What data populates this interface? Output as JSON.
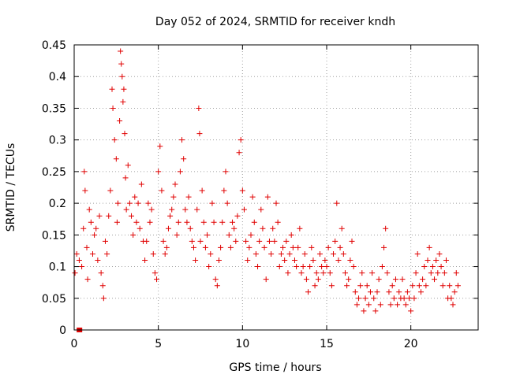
{
  "chart_data": {
    "type": "scatter",
    "title": "Day 052 of 2024, SRMTID for receiver kndh",
    "xlabel": "GPS time / hours",
    "ylabel": "SRMTID / TECUs",
    "xlim": [
      0,
      24
    ],
    "ylim": [
      0,
      0.45
    ],
    "xticks": [
      0,
      5,
      10,
      15,
      20
    ],
    "yticks": [
      0,
      0.05,
      0.1,
      0.15,
      0.2,
      0.25,
      0.3,
      0.35,
      0.4,
      0.45
    ],
    "xtick_labels": [
      "0",
      "5",
      "10",
      "15",
      "20"
    ],
    "ytick_labels": [
      "0",
      "0.05",
      "0.1",
      "0.15",
      "0.2",
      "0.25",
      "0.3",
      "0.35",
      "0.4",
      "0.45"
    ],
    "grid": true,
    "marker": "+",
    "color": "#e00000",
    "series": [
      {
        "name": "SRMTID",
        "points": [
          [
            0.05,
            0.09
          ],
          [
            0.15,
            0.12
          ],
          [
            0.3,
            0.11
          ],
          [
            0.45,
            0.1
          ],
          [
            0.55,
            0.16
          ],
          [
            0.6,
            0.25
          ],
          [
            0.65,
            0.22
          ],
          [
            0.75,
            0.13
          ],
          [
            0.8,
            0.08
          ],
          [
            0.9,
            0.19
          ],
          [
            1.0,
            0.17
          ],
          [
            1.1,
            0.12
          ],
          [
            1.2,
            0.15
          ],
          [
            1.3,
            0.16
          ],
          [
            1.4,
            0.11
          ],
          [
            1.5,
            0.18
          ],
          [
            1.6,
            0.09
          ],
          [
            1.7,
            0.07
          ],
          [
            1.75,
            0.05
          ],
          [
            1.85,
            0.14
          ],
          [
            1.95,
            0.12
          ],
          [
            2.05,
            0.18
          ],
          [
            2.15,
            0.22
          ],
          [
            2.25,
            0.38
          ],
          [
            2.3,
            0.35
          ],
          [
            2.4,
            0.3
          ],
          [
            2.5,
            0.27
          ],
          [
            2.55,
            0.17
          ],
          [
            2.6,
            0.2
          ],
          [
            2.7,
            0.33
          ],
          [
            2.75,
            0.44
          ],
          [
            2.8,
            0.42
          ],
          [
            2.85,
            0.4
          ],
          [
            2.9,
            0.36
          ],
          [
            2.95,
            0.38
          ],
          [
            3.0,
            0.31
          ],
          [
            3.05,
            0.24
          ],
          [
            3.1,
            0.19
          ],
          [
            3.2,
            0.26
          ],
          [
            3.3,
            0.2
          ],
          [
            3.4,
            0.18
          ],
          [
            3.5,
            0.15
          ],
          [
            3.6,
            0.21
          ],
          [
            3.7,
            0.17
          ],
          [
            3.8,
            0.2
          ],
          [
            3.9,
            0.16
          ],
          [
            4.0,
            0.23
          ],
          [
            4.1,
            0.14
          ],
          [
            4.2,
            0.11
          ],
          [
            4.3,
            0.14
          ],
          [
            4.4,
            0.2
          ],
          [
            4.5,
            0.17
          ],
          [
            4.6,
            0.19
          ],
          [
            4.7,
            0.12
          ],
          [
            4.8,
            0.09
          ],
          [
            4.9,
            0.08
          ],
          [
            5.0,
            0.25
          ],
          [
            5.1,
            0.29
          ],
          [
            5.2,
            0.22
          ],
          [
            5.3,
            0.14
          ],
          [
            5.4,
            0.12
          ],
          [
            5.5,
            0.13
          ],
          [
            5.6,
            0.16
          ],
          [
            5.7,
            0.18
          ],
          [
            5.8,
            0.19
          ],
          [
            5.9,
            0.21
          ],
          [
            6.0,
            0.23
          ],
          [
            6.1,
            0.15
          ],
          [
            6.2,
            0.17
          ],
          [
            6.3,
            0.25
          ],
          [
            6.4,
            0.3
          ],
          [
            6.5,
            0.27
          ],
          [
            6.6,
            0.19
          ],
          [
            6.7,
            0.17
          ],
          [
            6.8,
            0.21
          ],
          [
            6.9,
            0.16
          ],
          [
            7.0,
            0.14
          ],
          [
            7.1,
            0.13
          ],
          [
            7.2,
            0.11
          ],
          [
            7.3,
            0.19
          ],
          [
            7.4,
            0.35
          ],
          [
            7.45,
            0.31
          ],
          [
            7.5,
            0.14
          ],
          [
            7.6,
            0.22
          ],
          [
            7.7,
            0.17
          ],
          [
            7.8,
            0.13
          ],
          [
            7.9,
            0.15
          ],
          [
            8.0,
            0.1
          ],
          [
            8.1,
            0.12
          ],
          [
            8.2,
            0.2
          ],
          [
            8.3,
            0.17
          ],
          [
            8.4,
            0.08
          ],
          [
            8.5,
            0.07
          ],
          [
            8.6,
            0.11
          ],
          [
            8.7,
            0.13
          ],
          [
            8.8,
            0.17
          ],
          [
            8.9,
            0.22
          ],
          [
            9.0,
            0.25
          ],
          [
            9.1,
            0.2
          ],
          [
            9.2,
            0.15
          ],
          [
            9.3,
            0.13
          ],
          [
            9.4,
            0.17
          ],
          [
            9.5,
            0.16
          ],
          [
            9.6,
            0.14
          ],
          [
            9.7,
            0.18
          ],
          [
            9.8,
            0.28
          ],
          [
            9.9,
            0.3
          ],
          [
            10.0,
            0.22
          ],
          [
            10.1,
            0.19
          ],
          [
            10.2,
            0.14
          ],
          [
            10.3,
            0.11
          ],
          [
            10.4,
            0.13
          ],
          [
            10.5,
            0.15
          ],
          [
            10.6,
            0.21
          ],
          [
            10.7,
            0.17
          ],
          [
            10.8,
            0.12
          ],
          [
            10.9,
            0.1
          ],
          [
            11.0,
            0.14
          ],
          [
            11.1,
            0.19
          ],
          [
            11.2,
            0.16
          ],
          [
            11.3,
            0.13
          ],
          [
            11.4,
            0.08
          ],
          [
            11.5,
            0.21
          ],
          [
            11.6,
            0.14
          ],
          [
            11.7,
            0.12
          ],
          [
            11.8,
            0.16
          ],
          [
            11.9,
            0.14
          ],
          [
            12.0,
            0.2
          ],
          [
            12.1,
            0.17
          ],
          [
            12.2,
            0.1
          ],
          [
            12.3,
            0.12
          ],
          [
            12.4,
            0.13
          ],
          [
            12.5,
            0.11
          ],
          [
            12.6,
            0.14
          ],
          [
            12.7,
            0.09
          ],
          [
            12.8,
            0.12
          ],
          [
            12.9,
            0.15
          ],
          [
            13.0,
            0.13
          ],
          [
            13.1,
            0.11
          ],
          [
            13.2,
            0.1
          ],
          [
            13.3,
            0.13
          ],
          [
            13.4,
            0.16
          ],
          [
            13.5,
            0.09
          ],
          [
            13.6,
            0.1
          ],
          [
            13.7,
            0.12
          ],
          [
            13.8,
            0.08
          ],
          [
            13.9,
            0.06
          ],
          [
            14.0,
            0.1
          ],
          [
            14.1,
            0.13
          ],
          [
            14.2,
            0.11
          ],
          [
            14.3,
            0.07
          ],
          [
            14.4,
            0.09
          ],
          [
            14.5,
            0.08
          ],
          [
            14.6,
            0.12
          ],
          [
            14.7,
            0.1
          ],
          [
            14.8,
            0.09
          ],
          [
            14.9,
            0.11
          ],
          [
            15.0,
            0.1
          ],
          [
            15.1,
            0.13
          ],
          [
            15.2,
            0.09
          ],
          [
            15.3,
            0.07
          ],
          [
            15.4,
            0.12
          ],
          [
            15.5,
            0.14
          ],
          [
            15.6,
            0.2
          ],
          [
            15.7,
            0.11
          ],
          [
            15.8,
            0.13
          ],
          [
            15.9,
            0.16
          ],
          [
            16.0,
            0.12
          ],
          [
            16.1,
            0.09
          ],
          [
            16.2,
            0.07
          ],
          [
            16.3,
            0.08
          ],
          [
            16.4,
            0.11
          ],
          [
            16.5,
            0.14
          ],
          [
            16.6,
            0.1
          ],
          [
            16.7,
            0.06
          ],
          [
            16.8,
            0.04
          ],
          [
            16.9,
            0.05
          ],
          [
            17.0,
            0.07
          ],
          [
            17.1,
            0.09
          ],
          [
            17.2,
            0.03
          ],
          [
            17.3,
            0.05
          ],
          [
            17.4,
            0.07
          ],
          [
            17.5,
            0.04
          ],
          [
            17.6,
            0.06
          ],
          [
            17.7,
            0.09
          ],
          [
            17.8,
            0.05
          ],
          [
            17.9,
            0.03
          ],
          [
            18.0,
            0.06
          ],
          [
            18.1,
            0.08
          ],
          [
            18.2,
            0.04
          ],
          [
            18.3,
            0.1
          ],
          [
            18.4,
            0.13
          ],
          [
            18.5,
            0.16
          ],
          [
            18.6,
            0.09
          ],
          [
            18.7,
            0.06
          ],
          [
            18.8,
            0.04
          ],
          [
            18.9,
            0.07
          ],
          [
            19.0,
            0.05
          ],
          [
            19.1,
            0.08
          ],
          [
            19.2,
            0.04
          ],
          [
            19.3,
            0.06
          ],
          [
            19.4,
            0.05
          ],
          [
            19.5,
            0.08
          ],
          [
            19.6,
            0.05
          ],
          [
            19.7,
            0.04
          ],
          [
            19.8,
            0.06
          ],
          [
            19.9,
            0.05
          ],
          [
            20.0,
            0.03
          ],
          [
            20.1,
            0.07
          ],
          [
            20.2,
            0.05
          ],
          [
            20.3,
            0.09
          ],
          [
            20.4,
            0.12
          ],
          [
            20.5,
            0.07
          ],
          [
            20.6,
            0.06
          ],
          [
            20.7,
            0.08
          ],
          [
            20.8,
            0.1
          ],
          [
            20.9,
            0.07
          ],
          [
            21.0,
            0.11
          ],
          [
            21.1,
            0.13
          ],
          [
            21.2,
            0.09
          ],
          [
            21.3,
            0.1
          ],
          [
            21.4,
            0.08
          ],
          [
            21.5,
            0.11
          ],
          [
            21.6,
            0.09
          ],
          [
            21.7,
            0.12
          ],
          [
            21.8,
            0.1
          ],
          [
            21.9,
            0.07
          ],
          [
            22.0,
            0.09
          ],
          [
            22.1,
            0.11
          ],
          [
            22.2,
            0.05
          ],
          [
            22.3,
            0.07
          ],
          [
            22.4,
            0.05
          ],
          [
            22.5,
            0.04
          ],
          [
            22.6,
            0.06
          ],
          [
            22.7,
            0.09
          ],
          [
            22.8,
            0.07
          ]
        ]
      }
    ]
  }
}
